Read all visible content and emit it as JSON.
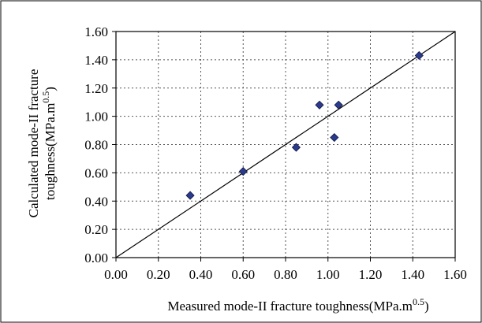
{
  "chart_data": {
    "type": "scatter",
    "title": "",
    "xlabel": {
      "main": "Measured mode-II fracture toughness(MPa.m",
      "sup": "0.5",
      "close": ")"
    },
    "ylabel": {
      "line1": "Calculated mode-II fracture",
      "line2_main": "toughness(MPa.m",
      "line2_sup": "0.5",
      "line2_close": ")"
    },
    "xlim": [
      0,
      1.6
    ],
    "ylim": [
      0,
      1.6
    ],
    "x_ticks": [
      "0.00",
      "0.20",
      "0.40",
      "0.60",
      "0.80",
      "1.00",
      "1.20",
      "1.40",
      "1.60"
    ],
    "y_ticks": [
      "0.00",
      "0.20",
      "0.40",
      "0.60",
      "0.80",
      "1.00",
      "1.20",
      "1.40",
      "1.60"
    ],
    "grid": true,
    "reference_line": {
      "from": [
        0,
        0
      ],
      "to": [
        1.6,
        1.6
      ]
    },
    "marker": "diamond",
    "points": [
      {
        "x": 0.35,
        "y": 0.44
      },
      {
        "x": 0.6,
        "y": 0.61
      },
      {
        "x": 0.85,
        "y": 0.78
      },
      {
        "x": 0.96,
        "y": 1.08
      },
      {
        "x": 1.03,
        "y": 0.85
      },
      {
        "x": 1.05,
        "y": 1.08
      },
      {
        "x": 1.43,
        "y": 1.43
      }
    ],
    "colors": {
      "marker_fill": "#2b3a8c",
      "marker_stroke": "#0e1640",
      "grid": "#555555",
      "axis": "#000000"
    }
  }
}
